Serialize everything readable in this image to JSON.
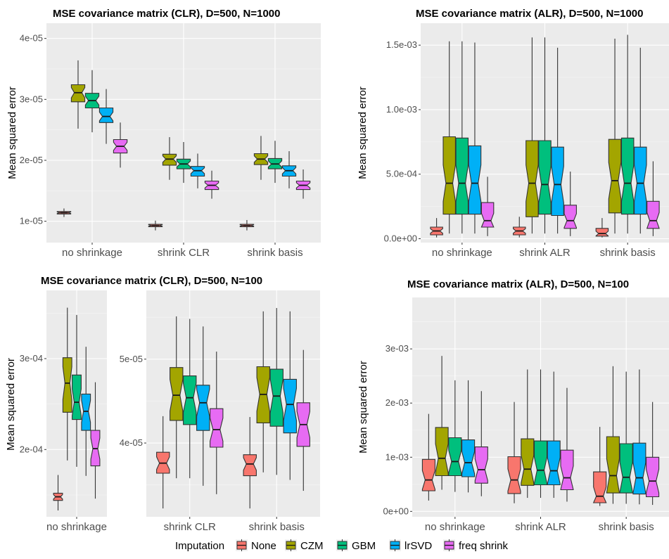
{
  "colors": {
    "None": "#f8766d",
    "CZM": "#a3a500",
    "GBM": "#00bf7d",
    "lrSVD": "#00b0f6",
    "freq shrink": "#e76bf3",
    "panel": "#ebebeb",
    "grid_major": "#ffffff",
    "grid_minor": "#f5f5f5"
  },
  "legend": {
    "title": "Imputation",
    "entries": [
      "None",
      "CZM",
      "GBM",
      "lrSVD",
      "freq shrink"
    ],
    "position": "bottom"
  },
  "chart_data": [
    {
      "type": "boxplot",
      "title": "MSE covariance matrix (CLR), D=500, N=1000",
      "xlabel": "",
      "ylabel": "Mean squared error",
      "categories": [
        "no shrinkage",
        "shrink CLR",
        "shrink basis"
      ],
      "ylim": [
        6.5e-06,
        4.25e-05
      ],
      "ticks": [
        1e-05,
        2e-05,
        3e-05,
        4e-05
      ],
      "tick_labels": [
        "1e-05",
        "2e-05",
        "3e-05",
        "4e-05"
      ],
      "grid": true,
      "notched": true,
      "series": [
        {
          "name": "None",
          "boxes": [
            {
              "min": 1.07e-05,
              "q1": 1.12e-05,
              "median": 1.14e-05,
              "q3": 1.16e-05,
              "max": 1.21e-05
            },
            {
              "min": 8.5e-06,
              "q1": 9.1e-06,
              "median": 9.3e-06,
              "q3": 9.5e-06,
              "max": 1.01e-05
            },
            {
              "min": 8.5e-06,
              "q1": 9.1e-06,
              "median": 9.3e-06,
              "q3": 9.5e-06,
              "max": 1.02e-05
            }
          ]
        },
        {
          "name": "CZM",
          "boxes": [
            {
              "min": 2.52e-05,
              "q1": 2.96e-05,
              "median": 3.11e-05,
              "q3": 3.24e-05,
              "max": 3.64e-05
            },
            {
              "min": 1.68e-05,
              "q1": 1.92e-05,
              "median": 2.02e-05,
              "q3": 2.1e-05,
              "max": 2.38e-05
            },
            {
              "min": 1.68e-05,
              "q1": 1.93e-05,
              "median": 2.02e-05,
              "q3": 2.11e-05,
              "max": 2.4e-05
            }
          ]
        },
        {
          "name": "GBM",
          "boxes": [
            {
              "min": 2.46e-05,
              "q1": 2.86e-05,
              "median": 2.98e-05,
              "q3": 3.1e-05,
              "max": 3.48e-05
            },
            {
              "min": 1.63e-05,
              "q1": 1.86e-05,
              "median": 1.94e-05,
              "q3": 2.02e-05,
              "max": 2.3e-05
            },
            {
              "min": 1.63e-05,
              "q1": 1.86e-05,
              "median": 1.94e-05,
              "q3": 2.03e-05,
              "max": 2.32e-05
            }
          ]
        },
        {
          "name": "lrSVD",
          "boxes": [
            {
              "min": 2.27e-05,
              "q1": 2.62e-05,
              "median": 2.72e-05,
              "q3": 2.86e-05,
              "max": 3.17e-05
            },
            {
              "min": 1.54e-05,
              "q1": 1.74e-05,
              "median": 1.83e-05,
              "q3": 1.9e-05,
              "max": 2.11e-05
            },
            {
              "min": 1.54e-05,
              "q1": 1.74e-05,
              "median": 1.83e-05,
              "q3": 1.91e-05,
              "max": 2.15e-05
            }
          ]
        },
        {
          "name": "freq shrink",
          "boxes": [
            {
              "min": 1.88e-05,
              "q1": 2.12e-05,
              "median": 2.23e-05,
              "q3": 2.34e-05,
              "max": 2.62e-05
            },
            {
              "min": 1.37e-05,
              "q1": 1.52e-05,
              "median": 1.59e-05,
              "q3": 1.66e-05,
              "max": 1.83e-05
            },
            {
              "min": 1.37e-05,
              "q1": 1.52e-05,
              "median": 1.59e-05,
              "q3": 1.66e-05,
              "max": 1.85e-05
            }
          ]
        }
      ]
    },
    {
      "type": "boxplot",
      "title": "MSE covariance matrix (ALR), D=500, N=1000",
      "xlabel": "",
      "ylabel": "Mean squared error",
      "categories": [
        "no shrinkage",
        "shrink ALR",
        "shrink basis"
      ],
      "ylim": [
        -3e-05,
        0.00167
      ],
      "ticks": [
        0,
        0.0005,
        0.001,
        0.0015
      ],
      "tick_labels": [
        "0.0e+00",
        "5.0e-04",
        "1.0e-03",
        "1.5e-03"
      ],
      "grid": true,
      "notched": true,
      "series": [
        {
          "name": "None",
          "boxes": [
            {
              "min": 1e-05,
              "q1": 3e-05,
              "median": 6e-05,
              "q3": 9e-05,
              "max": 0.00016
            },
            {
              "min": 1e-05,
              "q1": 3e-05,
              "median": 6e-05,
              "q3": 9e-05,
              "max": 0.00017
            },
            {
              "min": 1e-05,
              "q1": 2e-05,
              "median": 4e-05,
              "q3": 8e-05,
              "max": 0.00016
            }
          ]
        },
        {
          "name": "CZM",
          "boxes": [
            {
              "min": 4e-05,
              "q1": 0.00019,
              "median": 0.00043,
              "q3": 0.00079,
              "max": 0.00153
            },
            {
              "min": 4e-05,
              "q1": 0.00017,
              "median": 0.00043,
              "q3": 0.00076,
              "max": 0.00156
            },
            {
              "min": 4e-05,
              "q1": 0.0002,
              "median": 0.00045,
              "q3": 0.00077,
              "max": 0.00155
            }
          ]
        },
        {
          "name": "GBM",
          "boxes": [
            {
              "min": 4e-05,
              "q1": 0.00019,
              "median": 0.00043,
              "q3": 0.00078,
              "max": 0.00153
            },
            {
              "min": 4e-05,
              "q1": 0.00019,
              "median": 0.00042,
              "q3": 0.00076,
              "max": 0.00156
            },
            {
              "min": 4e-05,
              "q1": 0.00019,
              "median": 0.00043,
              "q3": 0.00078,
              "max": 0.00158
            }
          ]
        },
        {
          "name": "lrSVD",
          "boxes": [
            {
              "min": 4e-05,
              "q1": 0.00019,
              "median": 0.00043,
              "q3": 0.00072,
              "max": 0.00152
            },
            {
              "min": 4e-05,
              "q1": 0.00018,
              "median": 0.00042,
              "q3": 0.00071,
              "max": 0.00148
            },
            {
              "min": 4e-05,
              "q1": 0.00019,
              "median": 0.00043,
              "q3": 0.00071,
              "max": 0.00148
            }
          ]
        },
        {
          "name": "freq shrink",
          "boxes": [
            {
              "min": 2e-05,
              "q1": 9e-05,
              "median": 0.00014,
              "q3": 0.00028,
              "max": 0.00048
            },
            {
              "min": 2e-05,
              "q1": 8e-05,
              "median": 0.00014,
              "q3": 0.00026,
              "max": 0.00052
            },
            {
              "min": 2e-05,
              "q1": 8e-05,
              "median": 0.00014,
              "q3": 0.00029,
              "max": 0.0006
            }
          ]
        }
      ]
    },
    {
      "type": "boxplot",
      "title": "MSE covariance matrix (CLR), D=500, N=100",
      "xlabel": "",
      "ylabel": "Mean squared error",
      "categories": [
        "no shrinkage"
      ],
      "ylim": [
        0.000126,
        0.000375
      ],
      "ticks": [
        0.0002,
        0.0003
      ],
      "tick_labels": [
        "2e-04",
        "3e-04"
      ],
      "grid": true,
      "notched": true,
      "series": [
        {
          "name": "None",
          "boxes": [
            {
              "min": 0.000133,
              "q1": 0.000144,
              "median": 0.000148,
              "q3": 0.000152,
              "max": 0.000172
            }
          ]
        },
        {
          "name": "CZM",
          "boxes": [
            {
              "min": 0.000188,
              "q1": 0.000241,
              "median": 0.000273,
              "q3": 0.000301,
              "max": 0.000356
            }
          ]
        },
        {
          "name": "GBM",
          "boxes": [
            {
              "min": 0.000181,
              "q1": 0.000233,
              "median": 0.000252,
              "q3": 0.000282,
              "max": 0.000348
            }
          ]
        },
        {
          "name": "lrSVD",
          "boxes": [
            {
              "min": 0.000171,
              "q1": 0.000221,
              "median": 0.000242,
              "q3": 0.000261,
              "max": 0.000313
            }
          ]
        },
        {
          "name": "freq shrink",
          "boxes": [
            {
              "min": 0.000146,
              "q1": 0.000182,
              "median": 0.000201,
              "q3": 0.000221,
              "max": 0.000274
            }
          ]
        }
      ]
    },
    {
      "type": "boxplot",
      "title": "",
      "xlabel": "",
      "ylabel": "",
      "categories": [
        "shrink CLR",
        "shrink basis"
      ],
      "ylim": [
        3.12e-05,
        5.82e-05
      ],
      "ticks": [
        4e-05,
        5e-05
      ],
      "tick_labels": [
        "4e-05",
        "5e-05"
      ],
      "grid": true,
      "notched": true,
      "series": [
        {
          "name": "None",
          "boxes": [
            {
              "min": 3.22e-05,
              "q1": 3.64e-05,
              "median": 3.76e-05,
              "q3": 3.89e-05,
              "max": 4.32e-05
            },
            {
              "min": 3.22e-05,
              "q1": 3.61e-05,
              "median": 3.75e-05,
              "q3": 3.86e-05,
              "max": 4.31e-05
            }
          ]
        },
        {
          "name": "CZM",
          "boxes": [
            {
              "min": 3.58e-05,
              "q1": 4.27e-05,
              "median": 4.57e-05,
              "q3": 4.9e-05,
              "max": 5.51e-05
            },
            {
              "min": 3.65e-05,
              "q1": 4.24e-05,
              "median": 4.58e-05,
              "q3": 4.91e-05,
              "max": 5.57e-05
            }
          ]
        },
        {
          "name": "GBM",
          "boxes": [
            {
              "min": 3.58e-05,
              "q1": 4.22e-05,
              "median": 4.54e-05,
              "q3": 4.8e-05,
              "max": 5.48e-05
            },
            {
              "min": 3.62e-05,
              "q1": 4.2e-05,
              "median": 4.56e-05,
              "q3": 4.88e-05,
              "max": 5.61e-05
            }
          ]
        },
        {
          "name": "lrSVD",
          "boxes": [
            {
              "min": 3.49e-05,
              "q1": 4.15e-05,
              "median": 4.48e-05,
              "q3": 4.69e-05,
              "max": 5.39e-05
            },
            {
              "min": 3.56e-05,
              "q1": 4.12e-05,
              "median": 4.46e-05,
              "q3": 4.76e-05,
              "max": 5.57e-05
            }
          ]
        },
        {
          "name": "freq shrink",
          "boxes": [
            {
              "min": 3.39e-05,
              "q1": 3.95e-05,
              "median": 4.16e-05,
              "q3": 4.41e-05,
              "max": 5.09e-05
            },
            {
              "min": 3.43e-05,
              "q1": 3.96e-05,
              "median": 4.22e-05,
              "q3": 4.48e-05,
              "max": 5.11e-05
            }
          ]
        }
      ]
    },
    {
      "type": "boxplot",
      "title": "MSE covariance matrix (ALR), D=500, N=100",
      "xlabel": "",
      "ylabel": "Mean squared error",
      "categories": [
        "no shrinkage",
        "shrink ALR",
        "shrink basis"
      ],
      "ylim": [
        -0.0001,
        0.00395
      ],
      "ticks": [
        0,
        0.001,
        0.002,
        0.003
      ],
      "tick_labels": [
        "0e+00",
        "1e-03",
        "2e-03",
        "3e-03"
      ],
      "grid": true,
      "notched": true,
      "series": [
        {
          "name": "None",
          "boxes": [
            {
              "min": 0.0002,
              "q1": 0.00038,
              "median": 0.00058,
              "q3": 0.00096,
              "max": 0.0018
            },
            {
              "min": 0.00015,
              "q1": 0.00033,
              "median": 0.00058,
              "q3": 0.00101,
              "max": 0.00202
            },
            {
              "min": 0.0001,
              "q1": 0.00016,
              "median": 0.00028,
              "q3": 0.00073,
              "max": 0.00156
            }
          ]
        },
        {
          "name": "CZM",
          "boxes": [
            {
              "min": 0.0004,
              "q1": 0.00066,
              "median": 0.00098,
              "q3": 0.00155,
              "max": 0.00287
            },
            {
              "min": 0.00025,
              "q1": 0.00048,
              "median": 0.00078,
              "q3": 0.00134,
              "max": 0.00262
            },
            {
              "min": 0.00014,
              "q1": 0.00034,
              "median": 0.00066,
              "q3": 0.00138,
              "max": 0.00268
            }
          ]
        },
        {
          "name": "GBM",
          "boxes": [
            {
              "min": 0.00036,
              "q1": 0.00066,
              "median": 0.00092,
              "q3": 0.00136,
              "max": 0.00242
            },
            {
              "min": 0.00025,
              "q1": 0.00049,
              "median": 0.00076,
              "q3": 0.0013,
              "max": 0.00262
            },
            {
              "min": 0.00014,
              "q1": 0.00034,
              "median": 0.00063,
              "q3": 0.00125,
              "max": 0.00258
            }
          ]
        },
        {
          "name": "lrSVD",
          "boxes": [
            {
              "min": 0.00035,
              "q1": 0.00064,
              "median": 0.0009,
              "q3": 0.00132,
              "max": 0.00242
            },
            {
              "min": 0.00025,
              "q1": 0.00049,
              "median": 0.00075,
              "q3": 0.0013,
              "max": 0.00258
            },
            {
              "min": 0.00013,
              "q1": 0.00032,
              "median": 0.00062,
              "q3": 0.00126,
              "max": 0.00262
            }
          ]
        },
        {
          "name": "freq shrink",
          "boxes": [
            {
              "min": 0.00028,
              "q1": 0.00052,
              "median": 0.00077,
              "q3": 0.00119,
              "max": 0.00222
            },
            {
              "min": 0.00018,
              "q1": 0.0004,
              "median": 0.00062,
              "q3": 0.00113,
              "max": 0.00228
            },
            {
              "min": 0.00012,
              "q1": 0.00027,
              "median": 0.00056,
              "q3": 0.001,
              "max": 0.00202
            }
          ]
        }
      ]
    }
  ]
}
